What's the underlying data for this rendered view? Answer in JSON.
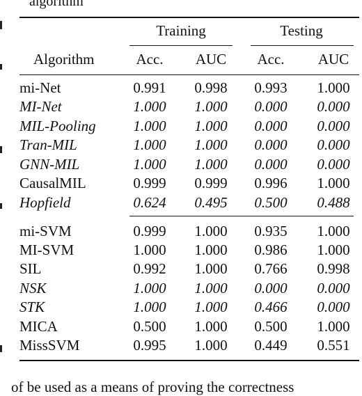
{
  "fragment_top": "algorithm",
  "fragment_bottom": "of be used as a means of proving the correctness",
  "table": {
    "header": {
      "algorithm": "Algorithm",
      "groups": [
        "Training",
        "Testing"
      ],
      "metrics": [
        "Acc.",
        "AUC",
        "Acc.",
        "AUC"
      ]
    },
    "rows": [
      {
        "name": "mi-Net",
        "values": [
          "0.991",
          "0.998",
          "0.993",
          "1.000"
        ],
        "italic": false
      },
      {
        "name": "MI-Net",
        "values": [
          "1.000",
          "1.000",
          "0.000",
          "0.000"
        ],
        "italic": true
      },
      {
        "name": "MIL-Pooling",
        "values": [
          "1.000",
          "1.000",
          "0.000",
          "0.000"
        ],
        "italic": true
      },
      {
        "name": "Tran-MIL",
        "values": [
          "1.000",
          "1.000",
          "0.000",
          "0.000"
        ],
        "italic": true
      },
      {
        "name": "GNN-MIL",
        "values": [
          "1.000",
          "1.000",
          "0.000",
          "0.000"
        ],
        "italic": true
      },
      {
        "name": "CausalMIL",
        "values": [
          "0.999",
          "0.999",
          "0.996",
          "1.000"
        ],
        "italic": false
      },
      {
        "name": "Hopfield",
        "values": [
          "0.624",
          "0.495",
          "0.500",
          "0.488"
        ],
        "italic": true
      },
      {
        "name": "mi-SVM",
        "values": [
          "0.999",
          "1.000",
          "0.935",
          "1.000"
        ],
        "italic": false
      },
      {
        "name": "MI-SVM",
        "values": [
          "1.000",
          "1.000",
          "0.986",
          "1.000"
        ],
        "italic": false
      },
      {
        "name": "SIL",
        "values": [
          "0.992",
          "1.000",
          "0.766",
          "0.998"
        ],
        "italic": false
      },
      {
        "name": "NSK",
        "values": [
          "1.000",
          "1.000",
          "0.000",
          "0.000"
        ],
        "italic": true
      },
      {
        "name": "STK",
        "values": [
          "1.000",
          "1.000",
          "0.466",
          "0.000"
        ],
        "italic": true
      },
      {
        "name": "MICA",
        "values": [
          "0.500",
          "1.000",
          "0.500",
          "1.000"
        ],
        "italic": false
      },
      {
        "name": "MissSVM",
        "values": [
          "0.995",
          "1.000",
          "0.449",
          "0.551"
        ],
        "italic": false
      }
    ]
  }
}
